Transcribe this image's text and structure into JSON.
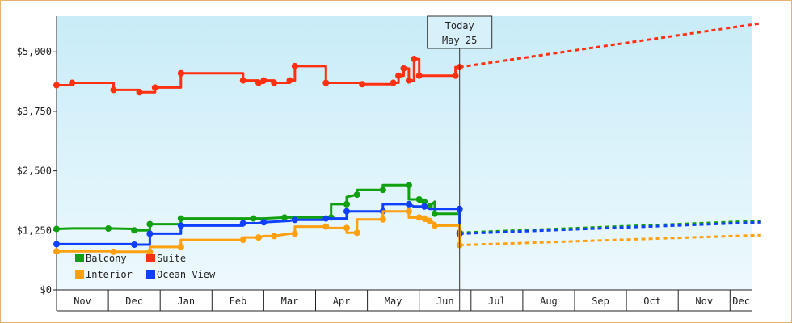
{
  "chart_data": {
    "type": "line",
    "y_axis": {
      "ylim": [
        0,
        5750
      ],
      "ticks": [
        0,
        1250,
        2500,
        3750,
        5000
      ],
      "tick_labels": [
        "$0",
        "$1,250",
        "$2,500",
        "$3,750",
        "$5,000"
      ]
    },
    "x_axis": {
      "months": [
        "Nov",
        "Dec",
        "Jan",
        "Feb",
        "Mar",
        "Apr",
        "May",
        "Jun",
        "Jul",
        "Aug",
        "Sep",
        "Oct",
        "Nov",
        "Dec"
      ]
    },
    "today_marker": {
      "line1": "Today",
      "line2": "May 25"
    },
    "legend": [
      {
        "name": "Balcony",
        "color": "#10a010"
      },
      {
        "name": "Suite",
        "color": "#ff3010"
      },
      {
        "name": "Interior",
        "color": "#ffa010"
      },
      {
        "name": "Ocean View",
        "color": "#1040ff"
      }
    ],
    "series": [
      {
        "name": "Suite",
        "color": "#ff3010",
        "points": [
          [
            0,
            4300
          ],
          [
            0.3,
            4300
          ],
          [
            0.3,
            4350
          ],
          [
            1.1,
            4350
          ],
          [
            1.1,
            4200
          ],
          [
            1.6,
            4200
          ],
          [
            1.6,
            4150
          ],
          [
            1.9,
            4150
          ],
          [
            1.9,
            4250
          ],
          [
            2.4,
            4250
          ],
          [
            2.4,
            4550
          ],
          [
            3.6,
            4550
          ],
          [
            3.6,
            4400
          ],
          [
            3.9,
            4400
          ],
          [
            3.9,
            4350
          ],
          [
            4.0,
            4350
          ],
          [
            4.0,
            4400
          ],
          [
            4.2,
            4400
          ],
          [
            4.2,
            4350
          ],
          [
            4.5,
            4350
          ],
          [
            4.5,
            4400
          ],
          [
            4.6,
            4400
          ],
          [
            4.6,
            4700
          ],
          [
            5.2,
            4700
          ],
          [
            5.2,
            4350
          ],
          [
            5.9,
            4350
          ],
          [
            5.9,
            4320
          ],
          [
            6.5,
            4320
          ],
          [
            6.5,
            4350
          ],
          [
            6.6,
            4350
          ],
          [
            6.6,
            4500
          ],
          [
            6.7,
            4500
          ],
          [
            6.7,
            4650
          ],
          [
            6.8,
            4650
          ],
          [
            6.8,
            4400
          ],
          [
            6.9,
            4400
          ],
          [
            6.9,
            4850
          ],
          [
            7.0,
            4850
          ],
          [
            7.0,
            4500
          ],
          [
            7.2,
            4500
          ],
          [
            7.7,
            4500
          ],
          [
            7.7,
            4680
          ],
          [
            7.78,
            4680
          ]
        ],
        "forecast": [
          [
            7.78,
            4680
          ],
          [
            13.6,
            5600
          ]
        ]
      },
      {
        "name": "Balcony",
        "color": "#10a010",
        "points": [
          [
            0,
            1280
          ],
          [
            0.3,
            1290
          ],
          [
            1.0,
            1290
          ],
          [
            1.5,
            1280
          ],
          [
            1.5,
            1250
          ],
          [
            1.8,
            1250
          ],
          [
            1.8,
            1380
          ],
          [
            2.4,
            1380
          ],
          [
            2.4,
            1500
          ],
          [
            3.6,
            1500
          ],
          [
            3.8,
            1500
          ],
          [
            4.0,
            1500
          ],
          [
            4.4,
            1520
          ],
          [
            5.0,
            1520
          ],
          [
            5.3,
            1520
          ],
          [
            5.3,
            1800
          ],
          [
            5.6,
            1800
          ],
          [
            5.6,
            1950
          ],
          [
            5.8,
            2000
          ],
          [
            5.8,
            2100
          ],
          [
            6.3,
            2100
          ],
          [
            6.3,
            2200
          ],
          [
            6.8,
            2200
          ],
          [
            6.8,
            1900
          ],
          [
            7.0,
            1900
          ],
          [
            7.0,
            1850
          ],
          [
            7.1,
            1850
          ],
          [
            7.1,
            1750
          ],
          [
            7.2,
            1750
          ],
          [
            7.3,
            1850
          ],
          [
            7.3,
            1600
          ],
          [
            7.78,
            1600
          ],
          [
            7.78,
            1200
          ]
        ],
        "forecast": [
          [
            7.78,
            1200
          ],
          [
            13.6,
            1450
          ]
        ]
      },
      {
        "name": "Ocean View",
        "color": "#1040ff",
        "points": [
          [
            0,
            960
          ],
          [
            1.5,
            960
          ],
          [
            1.5,
            950
          ],
          [
            1.8,
            950
          ],
          [
            1.8,
            1180
          ],
          [
            2.4,
            1180
          ],
          [
            2.4,
            1350
          ],
          [
            3.6,
            1350
          ],
          [
            3.6,
            1400
          ],
          [
            3.9,
            1400
          ],
          [
            4.0,
            1420
          ],
          [
            4.5,
            1450
          ],
          [
            4.6,
            1470
          ],
          [
            5.2,
            1470
          ],
          [
            5.2,
            1500
          ],
          [
            5.6,
            1500
          ],
          [
            5.6,
            1650
          ],
          [
            6.0,
            1650
          ],
          [
            6.3,
            1650
          ],
          [
            6.3,
            1800
          ],
          [
            6.8,
            1800
          ],
          [
            6.9,
            1750
          ],
          [
            7.1,
            1750
          ],
          [
            7.2,
            1700
          ],
          [
            7.78,
            1700
          ],
          [
            7.78,
            1180
          ]
        ],
        "forecast": [
          [
            7.78,
            1180
          ],
          [
            13.6,
            1420
          ]
        ]
      },
      {
        "name": "Interior",
        "color": "#ffa010",
        "points": [
          [
            0,
            810
          ],
          [
            1.1,
            810
          ],
          [
            1.1,
            800
          ],
          [
            1.5,
            800
          ],
          [
            1.8,
            800
          ],
          [
            1.8,
            900
          ],
          [
            2.4,
            900
          ],
          [
            2.4,
            1050
          ],
          [
            3.6,
            1050
          ],
          [
            3.6,
            1100
          ],
          [
            3.9,
            1100
          ],
          [
            4.0,
            1130
          ],
          [
            4.2,
            1130
          ],
          [
            4.5,
            1180
          ],
          [
            4.6,
            1180
          ],
          [
            4.6,
            1330
          ],
          [
            5.2,
            1330
          ],
          [
            5.2,
            1300
          ],
          [
            5.6,
            1300
          ],
          [
            5.6,
            1200
          ],
          [
            5.8,
            1200
          ],
          [
            5.8,
            1480
          ],
          [
            6.3,
            1480
          ],
          [
            6.3,
            1650
          ],
          [
            6.8,
            1650
          ],
          [
            6.8,
            1520
          ],
          [
            7.0,
            1520
          ],
          [
            7.0,
            1500
          ],
          [
            7.1,
            1500
          ],
          [
            7.1,
            1450
          ],
          [
            7.2,
            1450
          ],
          [
            7.3,
            1400
          ],
          [
            7.3,
            1350
          ],
          [
            7.78,
            1350
          ],
          [
            7.78,
            940
          ]
        ],
        "forecast": [
          [
            7.78,
            940
          ],
          [
            13.6,
            1150
          ]
        ]
      }
    ]
  }
}
